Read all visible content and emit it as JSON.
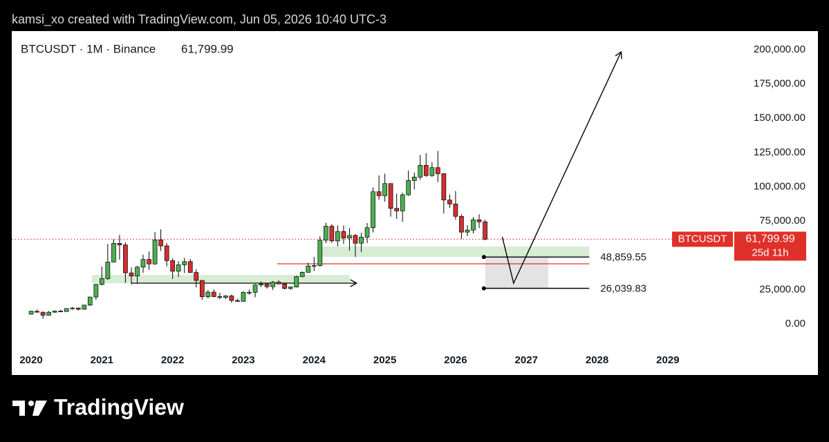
{
  "header": "kamsi_xo created with TradingView.com, Jun 05, 2026 10:40 UTC-3",
  "footer": "TradingView",
  "chart_data": {
    "type": "candlestick",
    "title": "BTCUSDT · 1M · Binance",
    "symbol": "BTCUSDT",
    "last_price": {
      "value": 61799.99,
      "label": "61,799.99"
    },
    "countdown": "25d 11h",
    "up_color": "#4caf50",
    "down_color": "#d32f2f",
    "xlim": [
      2019.726,
      2029.92
    ],
    "xticks": [
      2020,
      2021,
      2022,
      2023,
      2024,
      2025,
      2026,
      2027,
      2028,
      2029
    ],
    "ylim": [
      -18000,
      213500
    ],
    "yticks": [
      {
        "value": 0,
        "label": "0.00"
      },
      {
        "value": 25000,
        "label": "25,000.00"
      },
      {
        "value": 75000,
        "label": "75,000.00"
      },
      {
        "value": 100000,
        "label": "100,000.00"
      },
      {
        "value": 125000,
        "label": "125,000.00"
      },
      {
        "value": 150000,
        "label": "150,000.00"
      },
      {
        "value": 175000,
        "label": "175,000.00"
      },
      {
        "value": 200000,
        "label": "200,000.00"
      }
    ],
    "x": [
      2020,
      2020.083,
      2020.167,
      2020.25,
      2020.333,
      2020.417,
      2020.5,
      2020.583,
      2020.667,
      2020.75,
      2020.833,
      2020.917,
      2021,
      2021.083,
      2021.167,
      2021.25,
      2021.333,
      2021.417,
      2021.5,
      2021.583,
      2021.667,
      2021.75,
      2021.833,
      2021.917,
      2022,
      2022.083,
      2022.167,
      2022.25,
      2022.333,
      2022.417,
      2022.5,
      2022.583,
      2022.667,
      2022.75,
      2022.833,
      2022.917,
      2023,
      2023.083,
      2023.167,
      2023.25,
      2023.333,
      2023.417,
      2023.5,
      2023.583,
      2023.667,
      2023.75,
      2023.833,
      2023.917,
      2024,
      2024.083,
      2024.167,
      2024.25,
      2024.333,
      2024.417,
      2024.5,
      2024.583,
      2024.667,
      2024.75,
      2024.833,
      2024.917,
      2025,
      2025.083,
      2025.167,
      2025.25,
      2025.333,
      2025.417,
      2025.5,
      2025.583,
      2025.667,
      2025.75,
      2025.833,
      2025.917,
      2026,
      2026.083,
      2026.167,
      2026.25,
      2026.333,
      2026.417
    ],
    "open": [
      7200,
      9350,
      8600,
      6400,
      8600,
      9450,
      9100,
      11300,
      11650,
      10800,
      13800,
      19700,
      28900,
      33100,
      45200,
      58800,
      57700,
      37300,
      35000,
      41500,
      47100,
      43800,
      61300,
      57000,
      46200,
      38500,
      43200,
      45500,
      37600,
      31800,
      19900,
      23300,
      20000,
      19400,
      20500,
      17200,
      16500,
      23100,
      23100,
      28500,
      29200,
      27200,
      30500,
      29200,
      26000,
      27000,
      34600,
      37700,
      42300,
      42600,
      61100,
      71300,
      60600,
      67500,
      62700,
      64600,
      58900,
      63300,
      70200,
      96400,
      93500,
      102400,
      84300,
      82500,
      94200,
      104600,
      107100,
      115700,
      108200,
      114000,
      109600,
      90400,
      87500,
      78500,
      67000,
      68500,
      76000,
      74500
    ],
    "high": [
      9600,
      10500,
      9200,
      9500,
      10100,
      10400,
      11400,
      12500,
      12100,
      14100,
      19900,
      29300,
      41900,
      58400,
      61800,
      64900,
      59600,
      41300,
      42400,
      50500,
      52900,
      67000,
      69000,
      59000,
      47900,
      45800,
      48200,
      47400,
      40000,
      31900,
      24700,
      25200,
      22800,
      21100,
      21500,
      18400,
      23900,
      25200,
      29200,
      31000,
      29800,
      31400,
      31800,
      30200,
      27500,
      35200,
      38400,
      44700,
      48900,
      64000,
      73800,
      72800,
      71900,
      71900,
      70000,
      65600,
      66500,
      73600,
      99600,
      108400,
      109600,
      102500,
      95000,
      95700,
      111900,
      110500,
      123200,
      124500,
      117900,
      126200,
      110000,
      94500,
      97000,
      80000,
      72000,
      78000,
      80000,
      76000
    ],
    "low": [
      6900,
      8400,
      3800,
      6200,
      8100,
      8900,
      8900,
      10500,
      9900,
      10400,
      13200,
      17600,
      28100,
      32300,
      45000,
      47000,
      30000,
      28800,
      29300,
      37300,
      39600,
      43300,
      53300,
      42000,
      32900,
      34300,
      37200,
      37600,
      26700,
      17600,
      18800,
      19500,
      18100,
      18200,
      15500,
      16300,
      16500,
      21400,
      19500,
      26900,
      25800,
      24800,
      28900,
      25200,
      24900,
      26600,
      34100,
      37600,
      38600,
      41900,
      59000,
      59200,
      56600,
      58400,
      53500,
      49000,
      52500,
      58900,
      66800,
      90500,
      89200,
      78300,
      76600,
      74500,
      93400,
      98200,
      105100,
      107300,
      107300,
      103500,
      80600,
      84500,
      76000,
      62000,
      64000,
      66000,
      70000,
      61000
    ],
    "close": [
      9350,
      8600,
      6400,
      8600,
      9450,
      9100,
      11300,
      11650,
      10800,
      13800,
      19700,
      28900,
      33100,
      45200,
      58800,
      57700,
      37300,
      35000,
      41500,
      47100,
      43800,
      61300,
      57000,
      46200,
      38500,
      43200,
      45500,
      37600,
      31800,
      19900,
      23300,
      20000,
      19400,
      20500,
      17200,
      16500,
      23100,
      23100,
      28500,
      29200,
      27200,
      30500,
      29200,
      26000,
      27000,
      34600,
      37700,
      42300,
      42600,
      61100,
      71300,
      60600,
      67500,
      62700,
      64600,
      58900,
      63300,
      70200,
      96400,
      93500,
      102400,
      84300,
      82500,
      94200,
      104600,
      107100,
      115700,
      108200,
      114000,
      109600,
      90400,
      87500,
      78500,
      67000,
      68500,
      76000,
      74500,
      61799.99
    ],
    "zones": [
      {
        "color": "#d7ecd3",
        "xlim": [
          2020.86,
          2024.5
        ],
        "ylim": [
          29800,
          35800
        ]
      },
      {
        "color": "#d7ecd3",
        "xlim": [
          2024.1,
          2027.89
        ],
        "ylim": [
          48900,
          56500
        ]
      },
      {
        "color": "#e3e3e3",
        "xlim": [
          2026.42,
          2027.31
        ],
        "ylim": [
          25800,
          48900
        ]
      }
    ],
    "lines": [
      {
        "color": "#e0302a",
        "xlim": [
          2023.48,
          2027.89
        ],
        "y": 43900,
        "arrow": false
      },
      {
        "color": "#000000",
        "xlim": [
          2021.42,
          2024.6
        ],
        "y": 29800,
        "arrow": true
      }
    ],
    "levels": [
      {
        "value": 48859.55,
        "label": "48,859.55",
        "xlim": [
          2026.4,
          2027.89
        ]
      },
      {
        "value": 26039.83,
        "label": "26,039.83",
        "xlim": [
          2026.4,
          2027.89
        ]
      }
    ],
    "projection": {
      "x": [
        2026.66,
        2026.82,
        2028.34
      ],
      "y": [
        63500,
        29800,
        198400
      ]
    }
  }
}
